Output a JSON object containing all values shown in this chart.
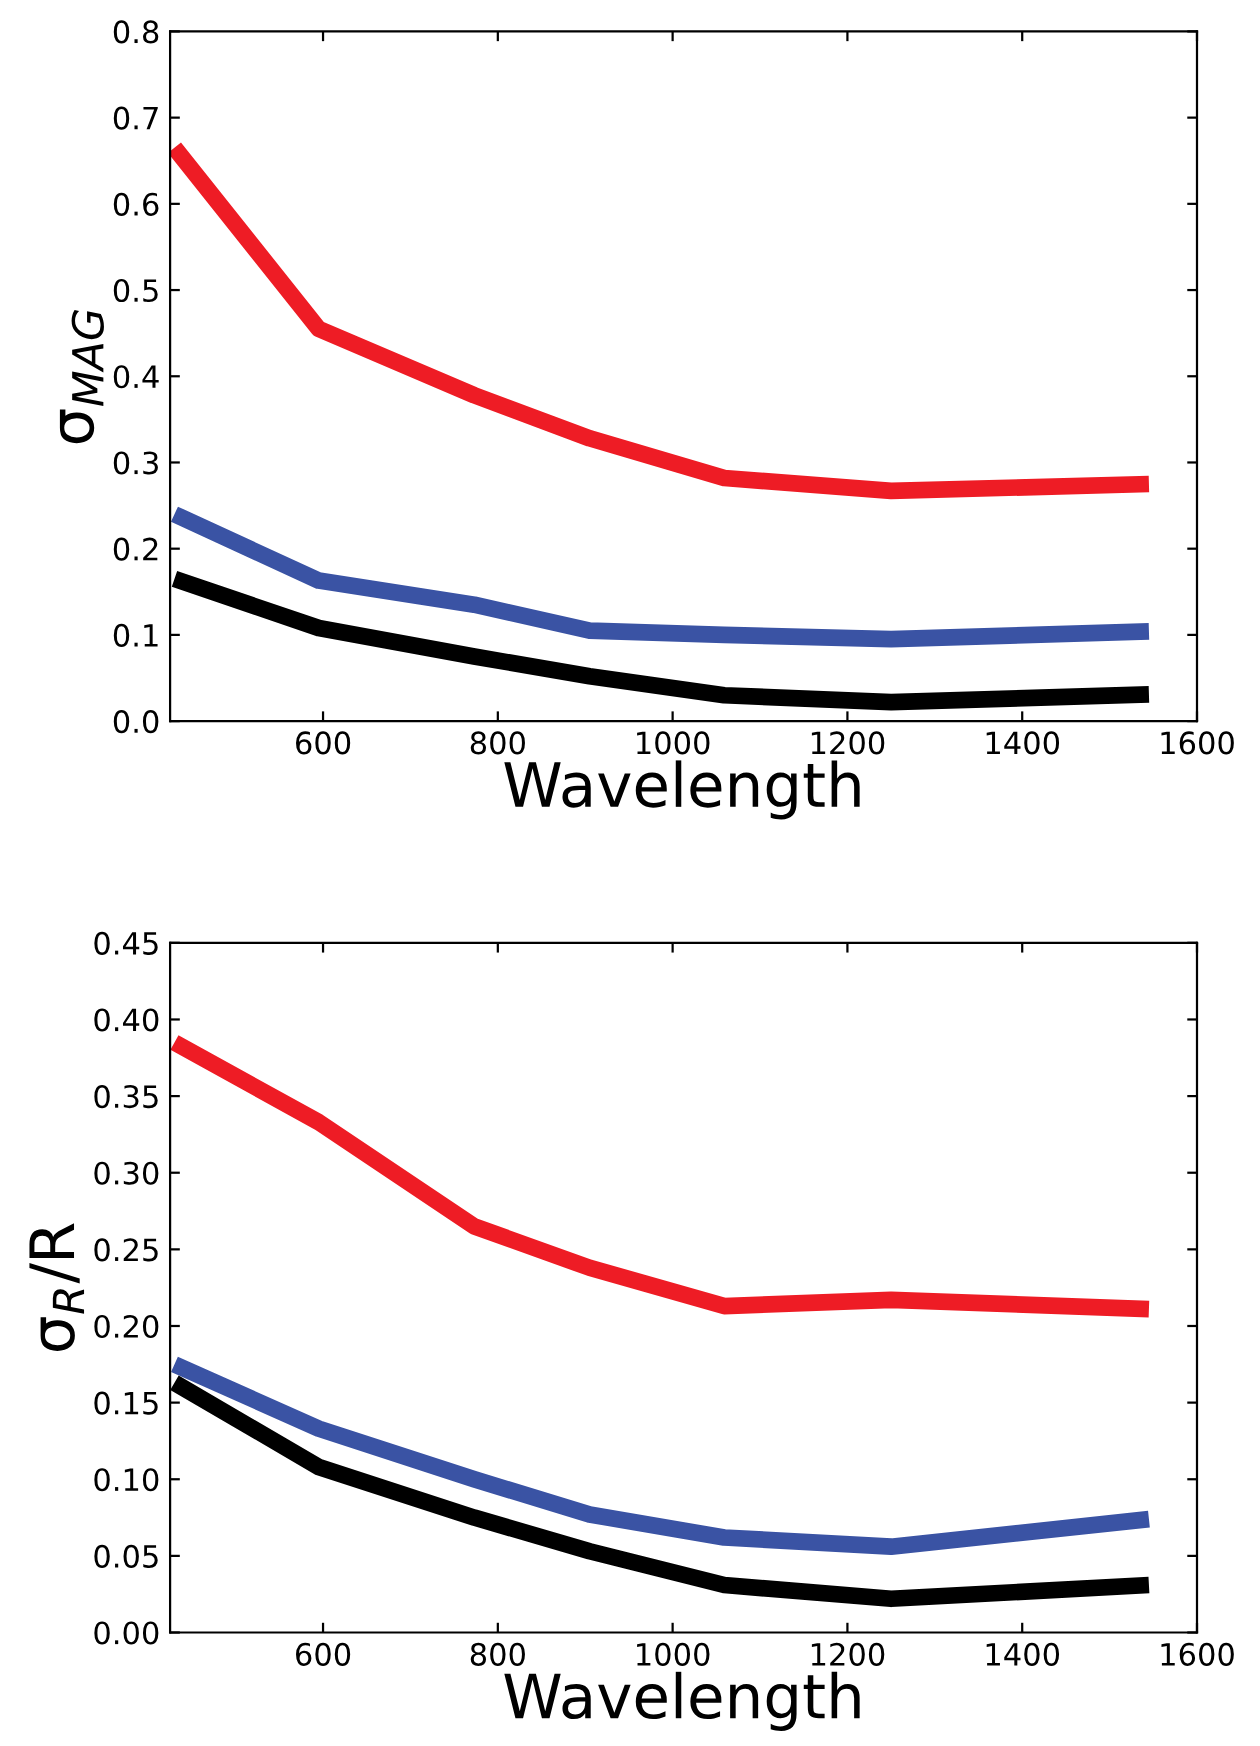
{
  "chart_data": [
    {
      "type": "line",
      "xlabel": "Wavelength",
      "ylabel": "σ$_{MAG}$",
      "x": [
        430,
        595,
        773,
        905,
        1059,
        1250,
        1545
      ],
      "xlim": [
        425,
        1600
      ],
      "xticks": [
        {
          "value": 600,
          "label": "600"
        },
        {
          "value": 800,
          "label": "800"
        },
        {
          "value": 1000,
          "label": "1000"
        },
        {
          "value": 1200,
          "label": "1200"
        },
        {
          "value": 1400,
          "label": "1400"
        },
        {
          "value": 1600,
          "label": "1600"
        }
      ],
      "ylim": [
        0,
        0.8
      ],
      "yticks": [
        {
          "value": 0,
          "label": "0.0"
        },
        0.1,
        0.2,
        0.3,
        0.4,
        0.5,
        0.6,
        0.7,
        0.8
      ],
      "series": [
        {
          "color": "#ee1c25",
          "values": [
            0.665,
            0.455,
            0.378,
            0.328,
            0.282,
            0.267,
            0.275
          ]
        },
        {
          "color": "#3a53a4",
          "values": [
            0.24,
            0.163,
            0.135,
            0.105,
            0.1,
            0.095,
            0.104
          ]
        },
        {
          "color": "#000000",
          "values": [
            0.165,
            0.108,
            0.075,
            0.052,
            0.03,
            0.022,
            0.031
          ]
        }
      ]
    },
    {
      "type": "line",
      "xlabel": "Wavelength",
      "ylabel": "σ$_{R}$/R",
      "x": [
        430,
        595,
        773,
        905,
        1059,
        1250,
        1545
      ],
      "xlim": [
        425,
        1600
      ],
      "xticks": [
        {
          "value": 600,
          "label": "600"
        },
        {
          "value": 800,
          "label": "800"
        },
        {
          "value": 1000,
          "label": "1000"
        },
        {
          "value": 1200,
          "label": "1200"
        },
        {
          "value": 1400,
          "label": "1400"
        },
        {
          "value": 1600,
          "label": "1600"
        }
      ],
      "ylim": [
        0,
        0.45
      ],
      "yticks": [
        {
          "value": 0,
          "label": "0.00"
        },
        0.05,
        {
          "value": 0.1,
          "label": "0.10"
        },
        0.15,
        {
          "value": 0.2,
          "label": "0.20"
        },
        0.25,
        {
          "value": 0.3,
          "label": "0.30"
        },
        0.35,
        {
          "value": 0.4,
          "label": "0.40"
        },
        0.45
      ],
      "series": [
        {
          "color": "#ee1c25",
          "values": [
            0.385,
            0.333,
            0.265,
            0.238,
            0.213,
            0.217,
            0.211
          ]
        },
        {
          "color": "#3a53a4",
          "values": [
            0.175,
            0.133,
            0.1,
            0.077,
            0.062,
            0.056,
            0.074
          ]
        },
        {
          "color": "#000000",
          "values": [
            0.163,
            0.108,
            0.075,
            0.053,
            0.031,
            0.022,
            0.031
          ]
        }
      ]
    }
  ]
}
